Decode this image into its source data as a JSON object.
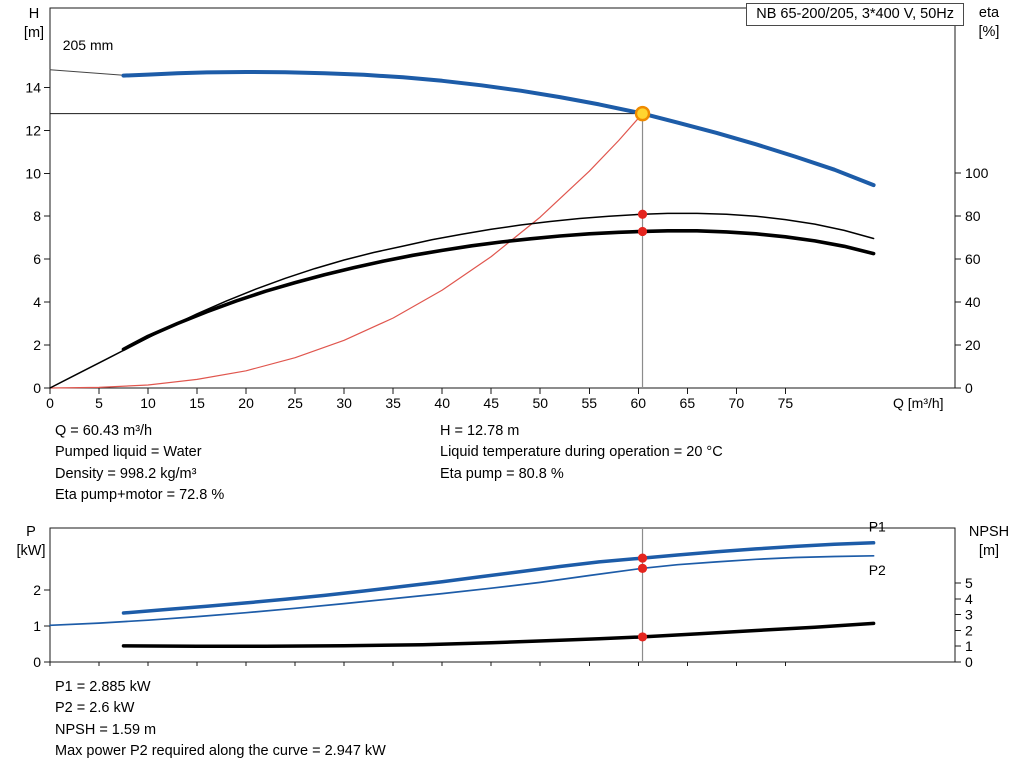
{
  "title_box": {
    "label": "NB 65-200/205, 3*400 V, 50Hz"
  },
  "info_panel": {
    "left": [
      "Q = 60.43 m³/h",
      "Pumped liquid = Water",
      "Density = 998.2 kg/m³",
      "Eta pump+motor = 72.8 %"
    ],
    "right": [
      "H = 12.78 m",
      "Liquid temperature during operation = 20 °C",
      "Eta pump = 80.8 %"
    ]
  },
  "footer_panel": [
    "P1 = 2.885 kW",
    "P2 = 2.6 kW",
    "NPSH = 1.59 m",
    "Max power P2 required along the curve = 2.947 kW"
  ],
  "chart_data": [
    {
      "type": "line",
      "title": "NB 65-200/205, 3*400 V, 50Hz",
      "xlabel": "Q [m³/h]",
      "ylabel_left": "H\n[m]",
      "ylabel_right": "eta\n[%]",
      "xlim": [
        0,
        92.3
      ],
      "ylim_left": [
        0,
        17.7
      ],
      "ylim_right": [
        0,
        176.7
      ],
      "x_ticks": [
        0,
        5,
        10,
        15,
        20,
        25,
        30,
        35,
        40,
        45,
        50,
        55,
        60,
        65,
        70,
        75
      ],
      "show_x_tick_labels": true,
      "y_ticks_left": [
        0,
        2,
        4,
        6,
        8,
        10,
        12,
        14
      ],
      "y_ticks_right": [
        0,
        20,
        40,
        60,
        80,
        100
      ],
      "guides": {
        "hline": {
          "y": 12.78,
          "x_from": 0,
          "x_to": 60.43
        },
        "vline": {
          "x": 60.43,
          "y_to": 12.78,
          "full": false
        }
      },
      "series": [
        {
          "name": "system-curve",
          "color": "#e0564e",
          "width": 1.2,
          "axis": "left",
          "points": [
            [
              0,
              0
            ],
            [
              5,
              0.03
            ],
            [
              10,
              0.14
            ],
            [
              15,
              0.4
            ],
            [
              20,
              0.8
            ],
            [
              25,
              1.41
            ],
            [
              30,
              2.22
            ],
            [
              35,
              3.26
            ],
            [
              40,
              4.56
            ],
            [
              45,
              6.12
            ],
            [
              50,
              7.96
            ],
            [
              55,
              10.1
            ],
            [
              58,
              11.53
            ],
            [
              60.43,
              12.78
            ]
          ]
        },
        {
          "name": "impeller-leader",
          "color": "#444444",
          "width": 1,
          "axis": "left",
          "points": [
            [
              0,
              14.82
            ],
            [
              7.5,
              14.57
            ]
          ]
        },
        {
          "name": "eta-pump",
          "color": "#000000",
          "width": 1.5,
          "axis": "right",
          "points": [
            [
              0,
              0
            ],
            [
              3,
              7
            ],
            [
              6,
              14
            ],
            [
              9,
              21
            ],
            [
              12,
              28
            ],
            [
              15,
              34.5
            ],
            [
              18,
              40.5
            ],
            [
              21,
              46
            ],
            [
              24,
              51
            ],
            [
              27,
              55.5
            ],
            [
              30,
              59.5
            ],
            [
              33,
              63
            ],
            [
              36,
              66
            ],
            [
              39,
              69
            ],
            [
              42,
              71.5
            ],
            [
              45,
              73.8
            ],
            [
              48,
              75.8
            ],
            [
              51,
              77.4
            ],
            [
              54,
              78.8
            ],
            [
              57,
              79.9
            ],
            [
              60.43,
              80.8
            ],
            [
              63,
              81.2
            ],
            [
              66,
              81.2
            ],
            [
              69,
              80.8
            ],
            [
              72,
              79.9
            ],
            [
              75,
              78.3
            ],
            [
              78,
              76.2
            ],
            [
              81,
              73.3
            ],
            [
              84,
              69.5
            ]
          ]
        },
        {
          "name": "eta-pump-motor",
          "color": "#000000",
          "width": 3.6,
          "axis": "right",
          "points": [
            [
              7.5,
              18
            ],
            [
              10,
              24
            ],
            [
              13,
              30
            ],
            [
              16,
              35.5
            ],
            [
              19,
              40.5
            ],
            [
              22,
              45
            ],
            [
              25,
              49
            ],
            [
              28,
              52.7
            ],
            [
              31,
              56
            ],
            [
              34,
              59
            ],
            [
              37,
              61.7
            ],
            [
              40,
              64
            ],
            [
              43,
              66.1
            ],
            [
              46,
              67.9
            ],
            [
              49,
              69.4
            ],
            [
              52,
              70.7
            ],
            [
              55,
              71.7
            ],
            [
              58,
              72.4
            ],
            [
              60.43,
              72.8
            ],
            [
              63,
              73.1
            ],
            [
              66,
              73.1
            ],
            [
              69,
              72.6
            ],
            [
              72,
              71.7
            ],
            [
              75,
              70.3
            ],
            [
              78,
              68.4
            ],
            [
              81,
              65.9
            ],
            [
              84,
              62.5
            ]
          ]
        },
        {
          "name": "head-205mm",
          "color": "#1d5ca8",
          "width": 4,
          "axis": "left",
          "points": [
            [
              7.5,
              14.55
            ],
            [
              10,
              14.6
            ],
            [
              13,
              14.66
            ],
            [
              16,
              14.7
            ],
            [
              20,
              14.72
            ],
            [
              24,
              14.71
            ],
            [
              28,
              14.66
            ],
            [
              32,
              14.59
            ],
            [
              36,
              14.47
            ],
            [
              40,
              14.31
            ],
            [
              44,
              14.1
            ],
            [
              48,
              13.85
            ],
            [
              52,
              13.55
            ],
            [
              56,
              13.21
            ],
            [
              60.43,
              12.78
            ],
            [
              64,
              12.36
            ],
            [
              68,
              11.88
            ],
            [
              72,
              11.35
            ],
            [
              76,
              10.78
            ],
            [
              80,
              10.17
            ],
            [
              84,
              9.45
            ]
          ]
        }
      ],
      "markers": [
        {
          "type": "dot",
          "x": 60.43,
          "y": 80.8,
          "axis": "right"
        },
        {
          "type": "dot",
          "x": 60.43,
          "y": 72.8,
          "axis": "right"
        },
        {
          "type": "duty-point",
          "x": 60.43,
          "y": 12.78,
          "axis": "left"
        }
      ],
      "annotations": [
        {
          "text": "205 mm",
          "x": 1.3,
          "y": 15.75,
          "axis": "left",
          "color": "#000000"
        }
      ]
    },
    {
      "type": "line",
      "ylabel_left": "P\n[kW]",
      "ylabel_right": "NPSH\n[m]",
      "xlim": [
        0,
        92.3
      ],
      "ylim_left": [
        0,
        3.72
      ],
      "ylim_right": [
        0,
        8.5
      ],
      "x_ticks": [
        0,
        5,
        10,
        15,
        20,
        25,
        30,
        35,
        40,
        45,
        50,
        55,
        60,
        65,
        70,
        75
      ],
      "show_x_tick_labels": false,
      "y_ticks_left": [
        0,
        1,
        2
      ],
      "y_ticks_right": [
        0,
        1,
        2,
        3,
        4,
        5
      ],
      "guides": {
        "vline": {
          "x": 60.43,
          "full": true
        }
      },
      "series": [
        {
          "name": "P2",
          "color": "#1d5ca8",
          "width": 1.7,
          "axis": "left",
          "points": [
            [
              0,
              1.02
            ],
            [
              5,
              1.08
            ],
            [
              10,
              1.16
            ],
            [
              15,
              1.26
            ],
            [
              20,
              1.37
            ],
            [
              25,
              1.49
            ],
            [
              30,
              1.62
            ],
            [
              35,
              1.76
            ],
            [
              40,
              1.9
            ],
            [
              45,
              2.05
            ],
            [
              50,
              2.21
            ],
            [
              55,
              2.4
            ],
            [
              60.43,
              2.6
            ],
            [
              64,
              2.7
            ],
            [
              68,
              2.78
            ],
            [
              72,
              2.85
            ],
            [
              76,
              2.9
            ],
            [
              80,
              2.93
            ],
            [
              84,
              2.947
            ]
          ]
        },
        {
          "name": "P1",
          "color": "#1d5ca8",
          "width": 3.5,
          "axis": "left",
          "points": [
            [
              7.5,
              1.36
            ],
            [
              12,
              1.46
            ],
            [
              16,
              1.55
            ],
            [
              20,
              1.64
            ],
            [
              24,
              1.74
            ],
            [
              28,
              1.85
            ],
            [
              32,
              1.97
            ],
            [
              36,
              2.1
            ],
            [
              40,
              2.23
            ],
            [
              44,
              2.37
            ],
            [
              48,
              2.51
            ],
            [
              52,
              2.65
            ],
            [
              56,
              2.78
            ],
            [
              60.43,
              2.885
            ],
            [
              64,
              2.97
            ],
            [
              68,
              3.06
            ],
            [
              72,
              3.14
            ],
            [
              76,
              3.21
            ],
            [
              80,
              3.27
            ],
            [
              84,
              3.31
            ]
          ]
        },
        {
          "name": "NPSH",
          "color": "#000000",
          "width": 3.5,
          "axis": "right",
          "points": [
            [
              7.5,
              1.02
            ],
            [
              15,
              1.0
            ],
            [
              22,
              1.0
            ],
            [
              30,
              1.03
            ],
            [
              38,
              1.1
            ],
            [
              45,
              1.22
            ],
            [
              52,
              1.38
            ],
            [
              56,
              1.48
            ],
            [
              60.43,
              1.59
            ],
            [
              66,
              1.78
            ],
            [
              72,
              2.0
            ],
            [
              78,
              2.2
            ],
            [
              84,
              2.45
            ]
          ]
        }
      ],
      "markers": [
        {
          "type": "dot",
          "x": 60.43,
          "y": 2.885,
          "axis": "left"
        },
        {
          "type": "dot",
          "x": 60.43,
          "y": 2.6,
          "axis": "left"
        },
        {
          "type": "dot",
          "x": 60.43,
          "y": 1.59,
          "axis": "right"
        }
      ],
      "annotations": [
        {
          "text": "P1",
          "x": 83.5,
          "y": 3.62,
          "axis": "left",
          "color": "#1d5ca8"
        },
        {
          "text": "P2",
          "x": 83.5,
          "y": 2.42,
          "axis": "left",
          "color": "#1d5ca8"
        }
      ]
    }
  ]
}
